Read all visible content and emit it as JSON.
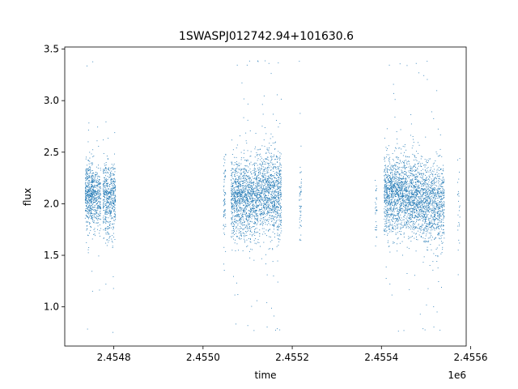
{
  "chart_data": {
    "type": "scatter",
    "title": "1SWASPJ012742.94+101630.6",
    "xlabel": "time",
    "ylabel": "flux",
    "x_offset_label": "1e6",
    "xlim": [
      2454690,
      2455590
    ],
    "ylim": [
      0.62,
      3.52
    ],
    "x_ticks": [
      2454800,
      2455000,
      2455200,
      2455400,
      2455600
    ],
    "x_tick_labels": [
      "2.4548",
      "2.4550",
      "2.4552",
      "2.4554",
      "2.4556"
    ],
    "y_ticks": [
      1.0,
      1.5,
      2.0,
      2.5,
      3.0,
      3.5
    ],
    "y_tick_labels": [
      "1.0",
      "1.5",
      "2.0",
      "2.5",
      "3.0",
      "3.5"
    ],
    "grid": false,
    "marker_color": "#1f77b4",
    "series": [
      {
        "clusters": [
          {
            "x_start": 2454735,
            "x_end": 2454755,
            "y_center": 2.1,
            "y_spread": 0.28,
            "count": 500
          },
          {
            "x_start": 2454755,
            "x_end": 2454770,
            "y_center": 2.05,
            "y_spread": 0.25,
            "count": 250
          },
          {
            "x_start": 2454775,
            "x_end": 2454803,
            "y_center": 2.05,
            "y_spread": 0.32,
            "count": 550
          },
          {
            "x_start": 2455045,
            "x_end": 2455050,
            "y_center": 2.05,
            "y_spread": 0.4,
            "count": 70
          },
          {
            "x_start": 2455062,
            "x_end": 2455120,
            "y_center": 2.05,
            "y_spread": 0.35,
            "count": 1200
          },
          {
            "x_start": 2455120,
            "x_end": 2455175,
            "y_center": 2.1,
            "y_spread": 0.35,
            "count": 1100
          },
          {
            "x_start": 2455215,
            "x_end": 2455220,
            "y_center": 2.0,
            "y_spread": 0.35,
            "count": 50
          },
          {
            "x_start": 2455385,
            "x_end": 2455390,
            "y_center": 1.95,
            "y_spread": 0.3,
            "count": 30
          },
          {
            "x_start": 2455405,
            "x_end": 2455455,
            "y_center": 2.1,
            "y_spread": 0.33,
            "count": 1100
          },
          {
            "x_start": 2455455,
            "x_end": 2455500,
            "y_center": 2.05,
            "y_spread": 0.33,
            "count": 900
          },
          {
            "x_start": 2455500,
            "x_end": 2455540,
            "y_center": 2.0,
            "y_spread": 0.33,
            "count": 700
          },
          {
            "x_start": 2455570,
            "x_end": 2455575,
            "y_center": 2.0,
            "y_spread": 0.4,
            "count": 25
          }
        ]
      }
    ]
  }
}
